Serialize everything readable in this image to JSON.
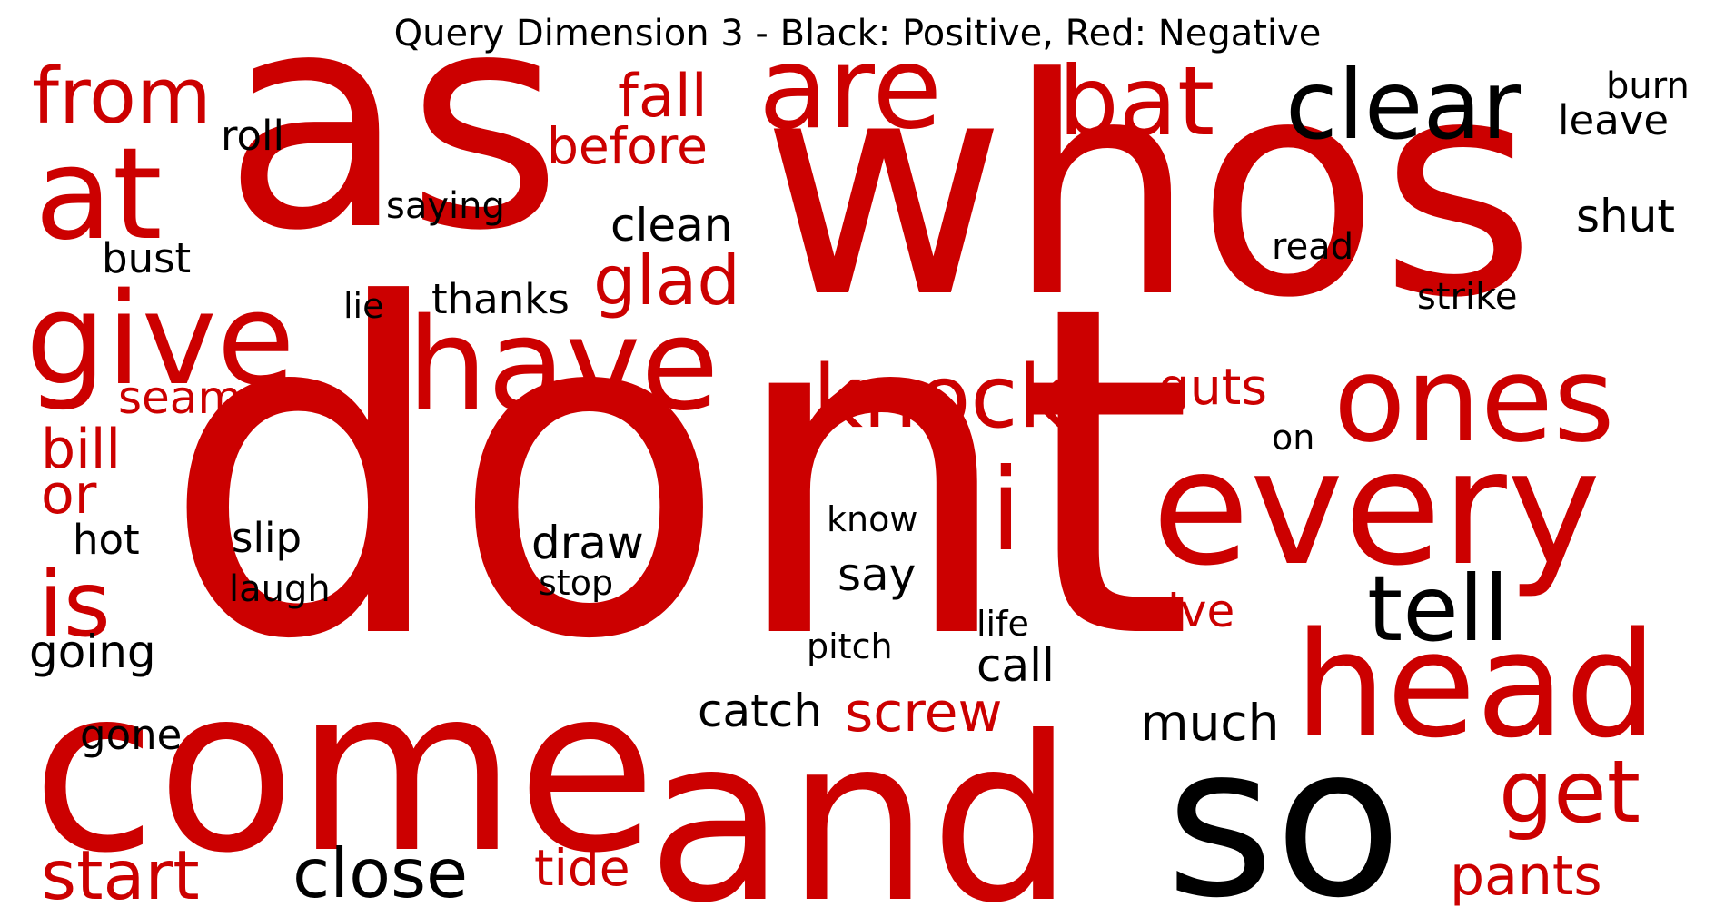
{
  "title": "Query Dimension 3 - Black: Positive, Red: Negative",
  "colors": {
    "positive": "#000000",
    "negative": "#cc0000"
  },
  "words": [
    {
      "text": "as",
      "polarity": "negative"
    },
    {
      "text": "whos",
      "polarity": "negative"
    },
    {
      "text": "dont",
      "polarity": "negative"
    },
    {
      "text": "come",
      "polarity": "negative"
    },
    {
      "text": "and",
      "polarity": "negative"
    },
    {
      "text": "so",
      "polarity": "positive"
    },
    {
      "text": "every",
      "polarity": "negative"
    },
    {
      "text": "head",
      "polarity": "negative"
    },
    {
      "text": "are",
      "polarity": "negative"
    },
    {
      "text": "have",
      "polarity": "negative"
    },
    {
      "text": "at",
      "polarity": "negative"
    },
    {
      "text": "give",
      "polarity": "negative"
    },
    {
      "text": "ones",
      "polarity": "negative"
    },
    {
      "text": "clear",
      "polarity": "positive"
    },
    {
      "text": "bat",
      "polarity": "negative"
    },
    {
      "text": "i",
      "polarity": "negative"
    },
    {
      "text": "knock",
      "polarity": "negative"
    },
    {
      "text": "from",
      "polarity": "negative"
    },
    {
      "text": "tell",
      "polarity": "positive"
    },
    {
      "text": "get",
      "polarity": "negative"
    },
    {
      "text": "is",
      "polarity": "negative"
    },
    {
      "text": "start",
      "polarity": "negative"
    },
    {
      "text": "close",
      "polarity": "positive"
    },
    {
      "text": "glad",
      "polarity": "negative"
    },
    {
      "text": "fall",
      "polarity": "negative"
    },
    {
      "text": "pants",
      "polarity": "negative"
    },
    {
      "text": "screw",
      "polarity": "negative"
    },
    {
      "text": "before",
      "polarity": "negative"
    },
    {
      "text": "clean",
      "polarity": "positive"
    },
    {
      "text": "guts",
      "polarity": "negative"
    },
    {
      "text": "bill",
      "polarity": "negative"
    },
    {
      "text": "or",
      "polarity": "negative"
    },
    {
      "text": "much",
      "polarity": "positive"
    },
    {
      "text": "catch",
      "polarity": "positive"
    },
    {
      "text": "tide",
      "polarity": "negative"
    },
    {
      "text": "ive",
      "polarity": "negative"
    },
    {
      "text": "going",
      "polarity": "positive"
    },
    {
      "text": "seams",
      "polarity": "negative"
    },
    {
      "text": "draw",
      "polarity": "positive"
    },
    {
      "text": "say",
      "polarity": "positive"
    },
    {
      "text": "slip",
      "polarity": "positive"
    },
    {
      "text": "shut",
      "polarity": "positive"
    },
    {
      "text": "call",
      "polarity": "positive"
    },
    {
      "text": "thanks",
      "polarity": "positive"
    },
    {
      "text": "hot",
      "polarity": "positive"
    },
    {
      "text": "roll",
      "polarity": "positive"
    },
    {
      "text": "bust",
      "polarity": "positive"
    },
    {
      "text": "leave",
      "polarity": "positive"
    },
    {
      "text": "strike",
      "polarity": "positive"
    },
    {
      "text": "gone",
      "polarity": "positive"
    },
    {
      "text": "burn",
      "polarity": "positive"
    },
    {
      "text": "laugh",
      "polarity": "positive"
    },
    {
      "text": "saying",
      "polarity": "positive"
    },
    {
      "text": "read",
      "polarity": "positive"
    },
    {
      "text": "know",
      "polarity": "positive"
    },
    {
      "text": "stop",
      "polarity": "positive"
    },
    {
      "text": "pitch",
      "polarity": "positive"
    },
    {
      "text": "life",
      "polarity": "positive"
    },
    {
      "text": "on",
      "polarity": "positive"
    },
    {
      "text": "lie",
      "polarity": "positive"
    }
  ]
}
